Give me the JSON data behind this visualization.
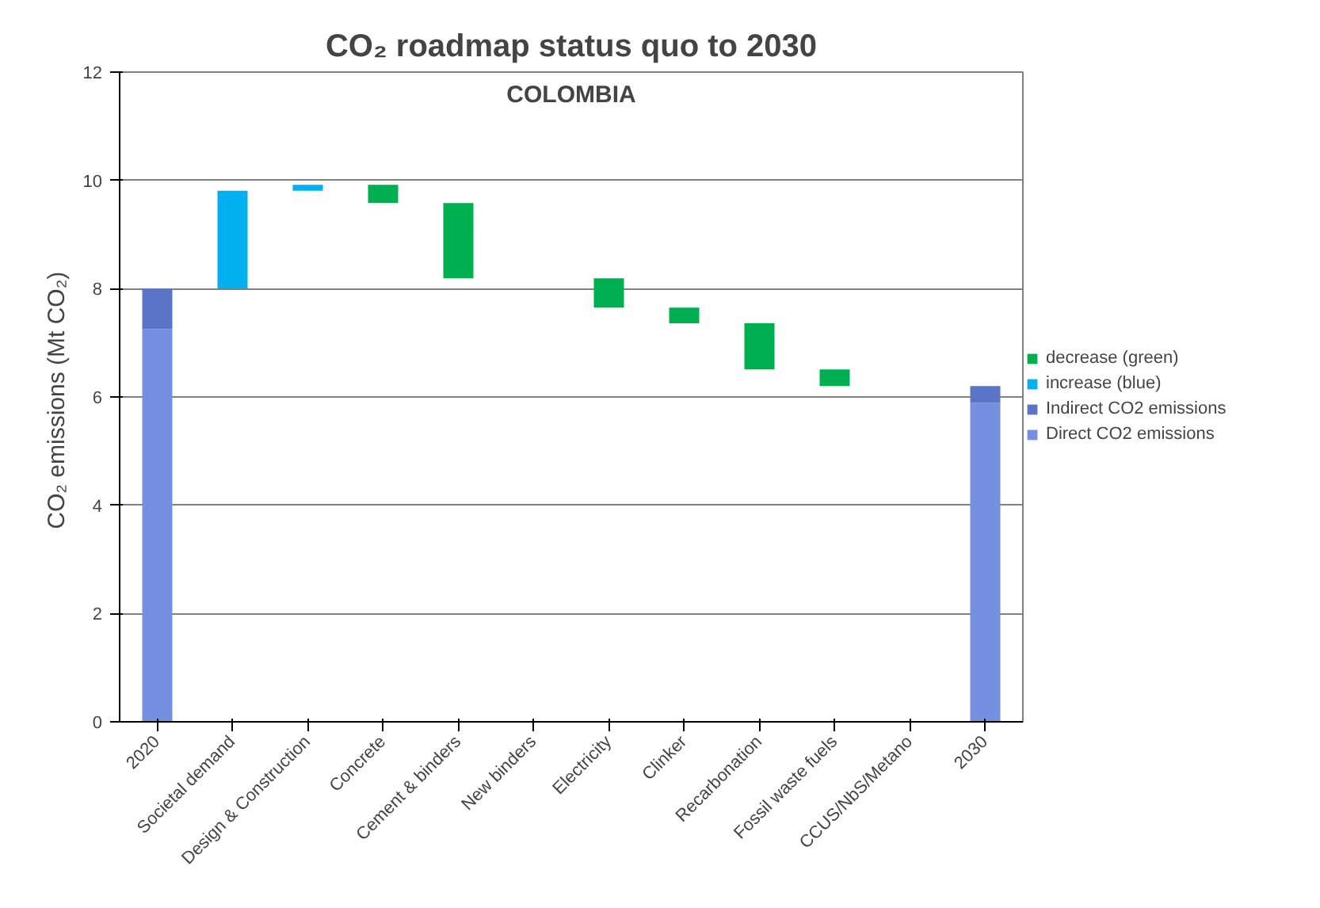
{
  "chart_data": {
    "type": "bar",
    "title": "CO₂ roadmap status quo to 2030",
    "ylabel": "CO₂ emissions  (Mt CO₂)",
    "annotations": [
      "COLOMBIA"
    ],
    "categories": [
      "2020",
      "Societal demand",
      "Design & Construction",
      "Concrete",
      "Cement & binders",
      "New binders",
      "Electricity",
      "Clinker",
      "Recarbonation",
      "Fossil waste fuels",
      "CCUS/NbS/Metano",
      "2030"
    ],
    "series": [
      {
        "name": "decrease (green)",
        "color": "#00b050",
        "base": [
          null,
          null,
          null,
          9.92,
          9.58,
          null,
          8.19,
          7.65,
          7.36,
          6.51,
          null,
          null
        ],
        "values": [
          null,
          null,
          null,
          -0.34,
          -1.39,
          null,
          -0.54,
          -0.29,
          -0.85,
          -0.31,
          null,
          null
        ]
      },
      {
        "name": "increase (blue)",
        "color": "#00b0f0",
        "base": [
          null,
          8.0,
          9.81,
          null,
          null,
          null,
          null,
          null,
          null,
          null,
          null,
          null
        ],
        "values": [
          null,
          1.81,
          0.11,
          null,
          null,
          null,
          null,
          null,
          null,
          null,
          null,
          null
        ]
      },
      {
        "name": "Indirect CO2 emissions",
        "color": "#5a74c8",
        "base": [
          7.25,
          null,
          null,
          null,
          null,
          null,
          null,
          null,
          null,
          null,
          null,
          5.89
        ],
        "values": [
          0.75,
          null,
          null,
          null,
          null,
          null,
          null,
          null,
          null,
          null,
          null,
          0.31
        ]
      },
      {
        "name": "Direct CO2 emissions",
        "color": "#7590e0",
        "base": [
          0,
          null,
          null,
          null,
          null,
          null,
          null,
          null,
          null,
          null,
          null,
          0
        ],
        "values": [
          7.25,
          null,
          null,
          null,
          null,
          null,
          null,
          null,
          null,
          null,
          null,
          5.89
        ]
      }
    ],
    "ylim": [
      0,
      12
    ],
    "yticks": [
      0,
      2,
      4,
      6,
      8,
      10,
      12
    ],
    "grid": "y",
    "legend": "right"
  }
}
